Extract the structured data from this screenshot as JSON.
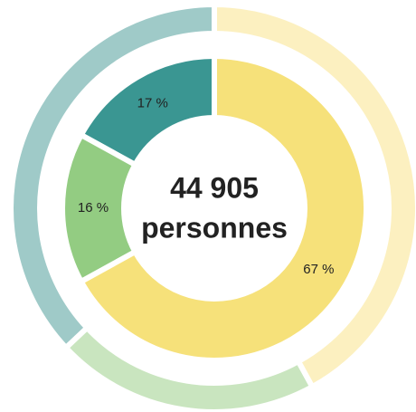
{
  "chart_data": {
    "type": "donut",
    "annotations": [
      "44 905",
      "personnes"
    ],
    "series": [
      {
        "ring": "outer",
        "colors": [
          "#fcf0c0",
          "#c9e5bf",
          "#9fcac8"
        ],
        "values": [
          42,
          21,
          37
        ]
      },
      {
        "ring": "inner",
        "colors": [
          "#f6e17a",
          "#93cc82",
          "#3a9692"
        ],
        "values": [
          67,
          16,
          17
        ],
        "value_labels": [
          "67 %",
          "16 %",
          "17 %"
        ]
      }
    ]
  }
}
